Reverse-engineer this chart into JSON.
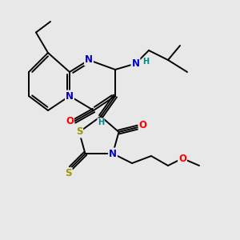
{
  "background_color": "#e8e8e8",
  "bond_color": "#000000",
  "bond_width": 1.4,
  "atom_colors": {
    "N": "#0000cc",
    "O": "#ff0000",
    "S": "#999900",
    "H": "#008888",
    "C": "#000000"
  },
  "font_size_atom": 8.5,
  "font_size_h": 7.0
}
